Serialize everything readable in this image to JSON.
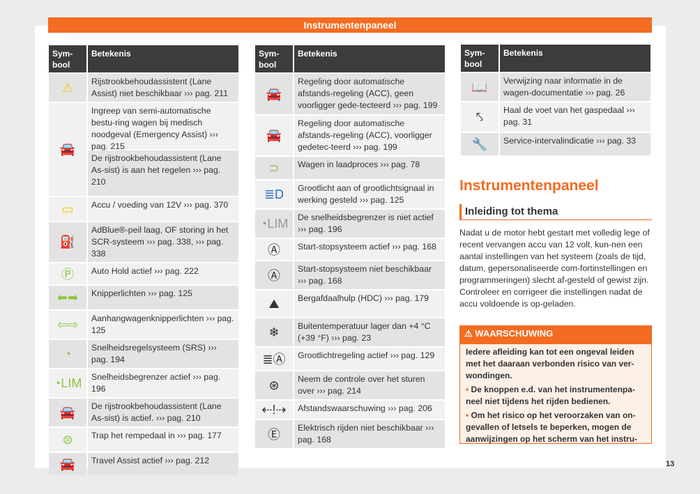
{
  "banner": "Instrumentenpaneel",
  "header": {
    "symbol": "Sym-bool",
    "meaning": "Betekenis"
  },
  "colors": {
    "accent": "#f36c21",
    "yellow": "#f5c400",
    "green": "#8cc63f",
    "dark": "#333333"
  },
  "left": [
    {
      "icon": "lane-assist-unavailable",
      "glyph": "⚠",
      "color": "#f5c400",
      "texts": [
        "Rijstrookbehoudassistent (Lane Assist) niet beschikbaar ››› pag. 211"
      ]
    },
    {
      "icon": "lane-assist-car",
      "glyph": "🚘",
      "color": "#f5c400",
      "texts": [
        "Ingreep van semi-automatische bestu-ring wagen bij medisch noodgeval (Emergency Assist) ››› pag. 215",
        "De rijstrookbehoudassistent (Lane As-sist) is aan het regelen ››› pag. 210"
      ]
    },
    {
      "icon": "battery",
      "glyph": "▭",
      "color": "#f5c400",
      "texts": [
        "Accu / voeding van 12V ››› pag. 370"
      ]
    },
    {
      "icon": "adblue-nozzle",
      "glyph": "⛽",
      "color": "#f5c400",
      "texts": [
        "AdBlue®-peil laag, OF storing in het SCR-systeem ››› pag. 338, ››› pag. 338"
      ]
    },
    {
      "icon": "auto-hold",
      "glyph": "Ⓟ",
      "color": "#8cc63f",
      "texts": [
        "Auto Hold actief ››› pag. 222"
      ]
    },
    {
      "icon": "turn-signals",
      "glyph": "⬅➡",
      "color": "#8cc63f",
      "texts": [
        "Knipperlichten ››› pag. 125"
      ]
    },
    {
      "icon": "trailer-turn-signals",
      "glyph": "⇦⇨",
      "color": "#8cc63f",
      "texts": [
        "Aanhangwagenknipperlichten ››› pag. 125"
      ]
    },
    {
      "icon": "cruise-control",
      "glyph": "◔",
      "color": "#8cc63f",
      "texts": [
        "Snelheidsregelsysteem (SRS) ››› pag. 194"
      ]
    },
    {
      "icon": "speed-limiter",
      "glyph": "◔LIM",
      "color": "#8cc63f",
      "texts": [
        "Snelheidsbegrenzer actief ››› pag. 196"
      ]
    },
    {
      "icon": "lane-assist-active",
      "glyph": "🚘",
      "color": "#8cc63f",
      "texts": [
        "De rijstrookbehoudassistent (Lane As-sist) is actief. ››› pag. 210"
      ]
    },
    {
      "icon": "brake-pedal",
      "glyph": "⊜",
      "color": "#8cc63f",
      "texts": [
        "Trap het rempedaal in ››› pag. 177"
      ]
    },
    {
      "icon": "travel-assist",
      "glyph": "🚘",
      "color": "#8cc63f",
      "texts": [
        "Travel Assist actief ››› pag. 212"
      ]
    }
  ],
  "middle": [
    {
      "icon": "acc-no-vehicle",
      "glyph": "🚘",
      "color": "#8cc63f",
      "texts": [
        "Regeling door automatische afstands-regeling (ACC), geen voorligger gede-tecteerd ››› pag. 199"
      ]
    },
    {
      "icon": "acc-vehicle",
      "glyph": "🚘",
      "color": "#8cc63f",
      "texts": [
        "Regeling door automatische afstands-regeling (ACC), voorligger gedetec-teerd ››› pag. 199"
      ]
    },
    {
      "icon": "charging-plug",
      "glyph": "⊃",
      "color": "#8cc63f",
      "texts": [
        "Wagen in laadproces ››› pag. 78"
      ]
    },
    {
      "icon": "high-beam",
      "glyph": "≣D",
      "color": "#2a6fc9",
      "texts": [
        "Grootlicht aan of grootlichtsignaal in werking gesteld ››› pag. 125"
      ]
    },
    {
      "icon": "speed-limiter-inactive",
      "glyph": "◔LIM",
      "color": "#999999",
      "texts": [
        "De snelheidsbegrenzer is niet actief ››› pag. 196"
      ]
    },
    {
      "icon": "start-stop",
      "glyph": "Ⓐ",
      "color": "#333333",
      "texts": [
        "Start-stopsysteem actief ››› pag. 168"
      ]
    },
    {
      "icon": "start-stop-unavailable",
      "glyph": "Ⓐ",
      "color": "#333333",
      "texts": [
        "Start-stopsysteem niet beschikbaar ››› pag. 168"
      ]
    },
    {
      "icon": "hill-descent",
      "glyph": "⛰",
      "color": "#333333",
      "texts": [
        "Bergafdaalhulp (HDC) ››› pag. 179"
      ]
    },
    {
      "icon": "snowflake",
      "glyph": "❄",
      "color": "#333333",
      "texts": [
        "Buitentemperatuur lager dan +4 °C (+39 °F) ››› pag. 23"
      ]
    },
    {
      "icon": "high-beam-control",
      "glyph": "≣Ⓐ",
      "color": "#333333",
      "texts": [
        "Grootlichtregeling actief ››› pag. 129"
      ]
    },
    {
      "icon": "steering-wheel-hands",
      "glyph": "⊛",
      "color": "#333333",
      "texts": [
        "Neem de controle over het sturen over ››› pag. 214"
      ]
    },
    {
      "icon": "distance-warning",
      "glyph": "⇠!⇢",
      "color": "#333333",
      "texts": [
        "Afstandswaarschuwing ››› pag. 206"
      ]
    },
    {
      "icon": "electric-driving-unavailable",
      "glyph": "Ⓔ",
      "color": "#333333",
      "texts": [
        "Elektrisch rijden niet beschikbaar ››› pag. 168"
      ]
    }
  ],
  "right": [
    {
      "icon": "manual-book",
      "glyph": "📖",
      "color": "#333333",
      "texts": [
        "Verwijzing naar informatie in de wagen-documentatie ››› pag. 26"
      ]
    },
    {
      "icon": "foot-off-pedal",
      "glyph": "⤣",
      "color": "#333333",
      "texts": [
        "Haal de voet van het gaspedaal ››› pag. 31"
      ]
    },
    {
      "icon": "wrench",
      "glyph": "🔧",
      "color": "#333333",
      "texts": [
        "Service-intervalindicatie ››› pag. 33"
      ]
    }
  ],
  "section": {
    "title": "Instrumentenpaneel",
    "subtitle": "Inleiding tot thema",
    "paragraph": "Nadat u de motor hebt gestart met volledig lege of recent vervangen accu van 12 volt, kun-nen een aantal instellingen van het systeem (zoals de tijd, datum, gepersonaliseerde com-fortinstellingen en programmeringen) slecht af-gesteld of gewist zijn. Controleer en corrigeer die instellingen nadat de accu voldoende is op-geladen."
  },
  "warning": {
    "title": "WAARSCHUWING",
    "intro": "Iedere afleiding kan tot een ongeval leiden met het daaraan verbonden risico van ver-wondingen.",
    "bullets": [
      "De knoppen e.d. van het instrumentenpa-neel niet tijdens het rijden bedienen.",
      "Om het risico op het veroorzaken van on-gevallen of letsels te beperken, mogen de aanwijzingen op het scherm van het instru-"
    ]
  },
  "page_number": "13"
}
